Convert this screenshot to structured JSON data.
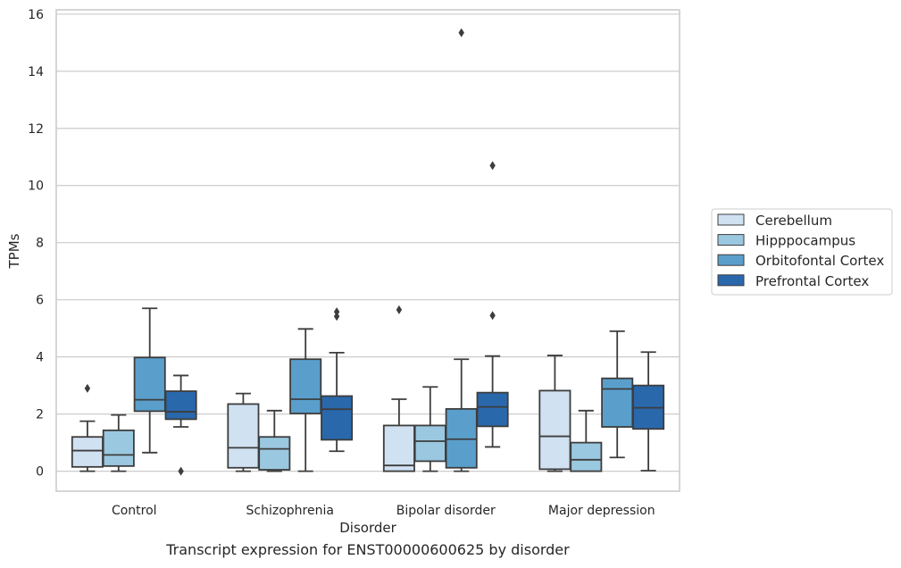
{
  "caption": "Transcript expression for ENST00000600625 by disorder",
  "chart_data": {
    "type": "box",
    "title": "",
    "xlabel": "Disorder",
    "ylabel": "TPMs",
    "ylim": [
      -0.7,
      16.15
    ],
    "yticks": [
      0,
      2,
      4,
      6,
      8,
      10,
      12,
      14,
      16
    ],
    "grid": "horizontal",
    "legend_position": "right",
    "categories": [
      "Control",
      "Schizophrenia",
      "Bipolar disorder",
      "Major depression"
    ],
    "series": [
      {
        "name": "Cerebellum",
        "color": "#d0e1f2",
        "boxes": [
          {
            "whislo": 0.0,
            "q1": 0.15,
            "med": 0.72,
            "q3": 1.2,
            "whishi": 1.75,
            "fliers": [
              2.9
            ]
          },
          {
            "whislo": 0.0,
            "q1": 0.12,
            "med": 0.82,
            "q3": 2.35,
            "whishi": 2.72,
            "fliers": []
          },
          {
            "whislo": 0.0,
            "q1": 0.0,
            "med": 0.2,
            "q3": 1.6,
            "whishi": 2.52,
            "fliers": [
              5.65
            ]
          },
          {
            "whislo": 0.0,
            "q1": 0.07,
            "med": 1.22,
            "q3": 2.82,
            "whishi": 4.05,
            "fliers": []
          }
        ]
      },
      {
        "name": "Hipppocampus",
        "color": "#9ac8e0",
        "boxes": [
          {
            "whislo": 0.0,
            "q1": 0.18,
            "med": 0.57,
            "q3": 1.43,
            "whishi": 1.97,
            "fliers": []
          },
          {
            "whislo": 0.0,
            "q1": 0.05,
            "med": 0.78,
            "q3": 1.2,
            "whishi": 2.12,
            "fliers": []
          },
          {
            "whislo": 0.0,
            "q1": 0.35,
            "med": 1.05,
            "q3": 1.6,
            "whishi": 2.95,
            "fliers": []
          },
          {
            "whislo": 0.0,
            "q1": 0.0,
            "med": 0.4,
            "q3": 1.0,
            "whishi": 2.12,
            "fliers": []
          }
        ]
      },
      {
        "name": "Orbitofontal Cortex",
        "color": "#5a9fcc",
        "boxes": [
          {
            "whislo": 0.65,
            "q1": 2.1,
            "med": 2.5,
            "q3": 3.98,
            "whishi": 5.7,
            "fliers": []
          },
          {
            "whislo": 0.0,
            "q1": 2.02,
            "med": 2.52,
            "q3": 3.92,
            "whishi": 4.98,
            "fliers": []
          },
          {
            "whislo": 0.0,
            "q1": 0.12,
            "med": 1.12,
            "q3": 2.18,
            "whishi": 3.92,
            "fliers": [
              15.35
            ]
          },
          {
            "whislo": 0.48,
            "q1": 1.55,
            "med": 2.88,
            "q3": 3.25,
            "whishi": 4.9,
            "fliers": []
          }
        ]
      },
      {
        "name": "Prefrontal Cortex",
        "color": "#2a68ac",
        "boxes": [
          {
            "whislo": 1.55,
            "q1": 1.82,
            "med": 2.08,
            "q3": 2.8,
            "whishi": 3.35,
            "fliers": [
              0.0
            ]
          },
          {
            "whislo": 0.7,
            "q1": 1.1,
            "med": 2.17,
            "q3": 2.63,
            "whishi": 4.15,
            "fliers": [
              5.42,
              5.58
            ]
          },
          {
            "whislo": 0.85,
            "q1": 1.57,
            "med": 2.25,
            "q3": 2.75,
            "whishi": 4.03,
            "fliers": [
              5.45,
              10.7
            ]
          },
          {
            "whislo": 0.02,
            "q1": 1.48,
            "med": 2.22,
            "q3": 3.0,
            "whishi": 4.17,
            "fliers": []
          }
        ]
      }
    ]
  }
}
